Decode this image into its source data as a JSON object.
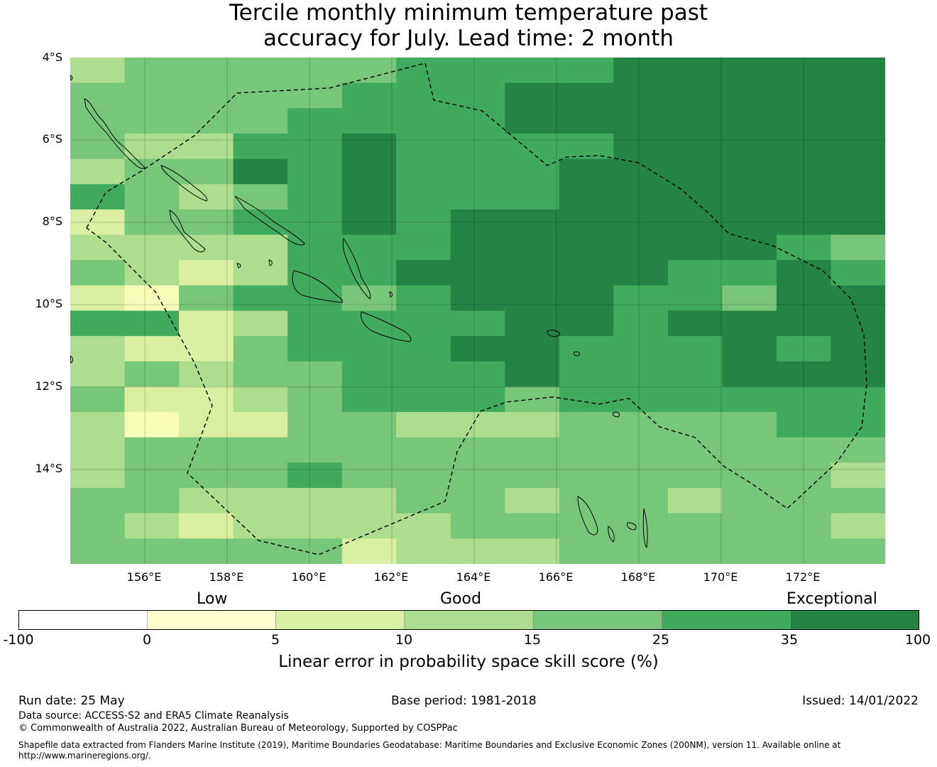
{
  "title_line1": "Tercile monthly minimum temperature past",
  "title_line2": "accuracy for July. Lead time: 2 month",
  "map": {
    "lat_labels": [
      "4°S",
      "6°S",
      "8°S",
      "10°S",
      "12°S",
      "14°S"
    ],
    "lon_labels": [
      "156°E",
      "158°E",
      "160°E",
      "162°E",
      "164°E",
      "166°E",
      "168°E",
      "170°E",
      "172°E"
    ],
    "color_levels": [
      "#ffffe5",
      "#f7fcb9",
      "#d9f0a3",
      "#addd8e",
      "#78c679",
      "#41ab5d",
      "#238443"
    ],
    "grid_rows": [
      "344444555566666",
      "444445556666666",
      "444455556666666",
      "433556555566666",
      "344656555666666",
      "543456555666666",
      "244556566666666",
      "333355566666654",
      "432355666665565",
      "214554566655466",
      "552355556656666",
      "322455566555656",
      "343445556555666",
      "422345554555555",
      "312244333444455",
      "344444444444444",
      "344454444444443",
      "443333443443444",
      "432333344444443",
      "444442333444444"
    ]
  },
  "colorbar": {
    "categories": [
      "Low",
      "Good",
      "Exceptional"
    ],
    "ticks": [
      "-100",
      "0",
      "5",
      "10",
      "15",
      "25",
      "35",
      "100"
    ],
    "colors": [
      "#ffffff",
      "#ffffcc",
      "#d9f0a3",
      "#addd8e",
      "#78c679",
      "#41ab5d",
      "#238443"
    ],
    "label": "Linear error in probability space skill score (%)"
  },
  "footer": {
    "run_date": "Run date: 25 May",
    "base_period": "Base period: 1981-2018",
    "issued": "Issued: 14/01/2022",
    "data_source": "Data source: ACCESS-S2 and ERA5 Climate Reanalysis",
    "copyright": "© Commonwealth of Australia 2022, Australian Bureau of Meteorology, Supported by COSPPac",
    "shapefile_line1": "Shapefile data extracted from Flanders Marine Institute (2019), Maritime Boundaries Geodatabase: Maritime Boundaries and Exclusive Economic Zones (200NM), version 11. Available online at",
    "shapefile_line2": "http://www.marineregions.org/."
  }
}
